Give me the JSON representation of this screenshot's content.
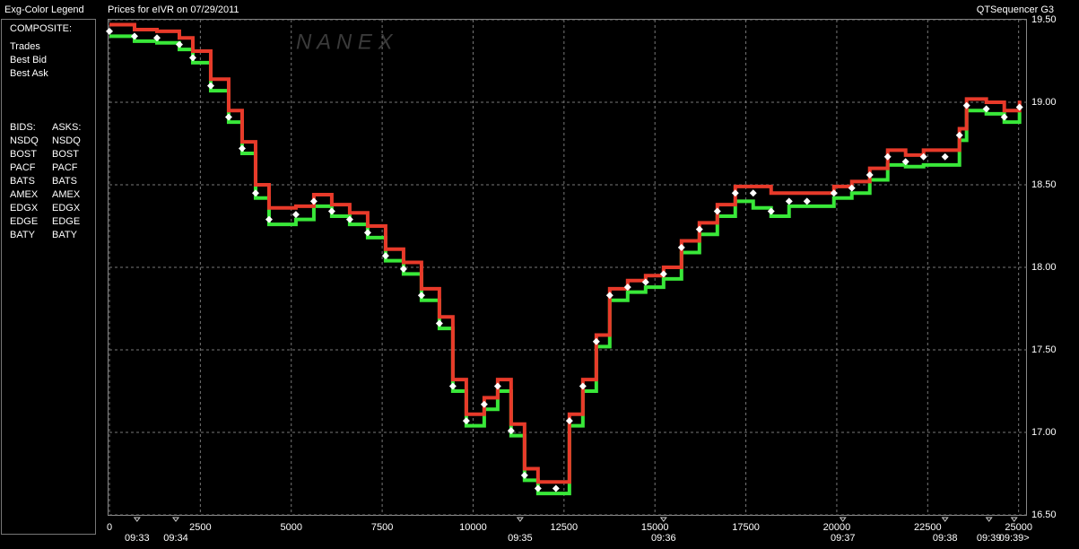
{
  "header": {
    "legend_title": "Exg-Color Legend",
    "app_name": "QTSequencer G3"
  },
  "legend": {
    "composite_title": "COMPOSITE:",
    "bids_title": "BIDS:",
    "asks_title": "ASKS:",
    "bids": [
      {
        "name": "NSDQ",
        "color": "#5080ff"
      },
      {
        "name": "BOST",
        "color": "#a8c888"
      },
      {
        "name": "PACF",
        "color": "#40e0f0"
      },
      {
        "name": "BATS",
        "color": "#88c8ff"
      },
      {
        "name": "AMEX",
        "color": "#40c040"
      },
      {
        "name": "EDGX",
        "color": "#3fa060"
      },
      {
        "name": "EDGE",
        "color": "#60b060"
      },
      {
        "name": "BATY",
        "color": "#4a68c8"
      }
    ],
    "asks": [
      {
        "name": "NSDQ",
        "color": "#ff9020"
      },
      {
        "name": "BOST",
        "color": "#e07050"
      },
      {
        "name": "PACF",
        "color": "#ffff60"
      },
      {
        "name": "BATS",
        "color": "#ffc060"
      },
      {
        "name": "AMEX",
        "color": "#e09040"
      },
      {
        "name": "EDGX",
        "color": "#c08060"
      },
      {
        "name": "EDGE",
        "color": "#e05030"
      },
      {
        "name": "BATY",
        "color": "#c84040"
      }
    ]
  },
  "chart_data": {
    "type": "line",
    "title": "Prices for  eIVR  on  07/29/2011",
    "watermark": "N A N E X",
    "x": [
      0,
      690,
      1307,
      1923,
      2293,
      2786,
      3279,
      3649,
      4019,
      4389,
      5128,
      5621,
      6114,
      6607,
      7101,
      7594,
      8087,
      8580,
      9073,
      9443,
      9813,
      10306,
      10676,
      11045,
      11415,
      11785,
      12278,
      12648,
      13018,
      13388,
      13757,
      14250,
      14744,
      15237,
      15730,
      16223,
      16716,
      17209,
      17702,
      18195,
      18688,
      19181,
      19921,
      20414,
      20907,
      21400,
      21893,
      22386,
      22978,
      23373,
      23570,
      24112,
      24606,
      25025
    ],
    "series": [
      {
        "name": "Trades",
        "color": "#ffffff",
        "marker": "diamond",
        "values": [
          19.43,
          19.4,
          19.39,
          19.35,
          19.27,
          19.1,
          18.91,
          18.72,
          18.45,
          18.29,
          18.32,
          18.4,
          18.34,
          18.29,
          18.21,
          18.07,
          17.99,
          17.83,
          17.66,
          17.28,
          17.07,
          17.17,
          17.28,
          17.01,
          16.74,
          16.66,
          16.66,
          17.07,
          17.28,
          17.55,
          17.83,
          17.88,
          17.91,
          17.96,
          18.12,
          18.23,
          18.34,
          18.45,
          18.45,
          18.34,
          18.4,
          18.4,
          18.45,
          18.48,
          18.56,
          18.67,
          18.64,
          18.67,
          18.67,
          18.8,
          18.98,
          18.96,
          18.91,
          18.97
        ]
      },
      {
        "name": "Best Bid",
        "color": "#39e839",
        "values": [
          19.4,
          19.37,
          19.36,
          19.32,
          19.24,
          19.07,
          18.88,
          18.69,
          18.42,
          18.26,
          18.29,
          18.37,
          18.31,
          18.26,
          18.18,
          18.04,
          17.96,
          17.8,
          17.63,
          17.25,
          17.04,
          17.14,
          17.25,
          16.98,
          16.71,
          16.63,
          16.63,
          17.04,
          17.25,
          17.52,
          17.8,
          17.85,
          17.88,
          17.93,
          18.09,
          18.2,
          18.31,
          18.4,
          18.36,
          18.31,
          18.37,
          18.37,
          18.42,
          18.45,
          18.53,
          18.62,
          18.61,
          18.62,
          18.62,
          18.77,
          18.95,
          18.93,
          18.88,
          18.94
        ]
      },
      {
        "name": "Best Ask",
        "color": "#e83a2a",
        "values": [
          19.47,
          19.44,
          19.43,
          19.39,
          19.31,
          19.14,
          18.95,
          18.76,
          18.5,
          18.36,
          18.37,
          18.44,
          18.38,
          18.33,
          18.25,
          18.11,
          18.03,
          17.87,
          17.7,
          17.32,
          17.11,
          17.21,
          17.32,
          17.05,
          16.78,
          16.7,
          16.7,
          17.11,
          17.32,
          17.59,
          17.87,
          17.92,
          17.95,
          18,
          18.16,
          18.27,
          18.38,
          18.49,
          18.49,
          18.45,
          18.45,
          18.45,
          18.49,
          18.52,
          18.6,
          18.71,
          18.68,
          18.71,
          18.71,
          18.84,
          19.02,
          19,
          18.95,
          19.01
        ]
      }
    ],
    "xlim": [
      0,
      25230
    ],
    "ylim": [
      16.5,
      19.5
    ],
    "xticks": [
      0,
      2500,
      5000,
      7500,
      10000,
      12500,
      15000,
      17500,
      20000,
      22500,
      25000
    ],
    "yticks": [
      {
        "value": 16.5,
        "label": "16.50"
      },
      {
        "value": 17,
        "label": "17.00"
      },
      {
        "value": 17.5,
        "label": "17.50"
      },
      {
        "value": 18,
        "label": "18.00"
      },
      {
        "value": 18.5,
        "label": "18.50"
      },
      {
        "value": 19,
        "label": "19.00"
      },
      {
        "value": 19.5,
        "label": "19.50"
      }
    ],
    "grid": true,
    "time_markers": [
      {
        "x": 760,
        "label": "09:33"
      },
      {
        "x": 1825,
        "label": "09:34"
      },
      {
        "x": 11292,
        "label": "09:35"
      },
      {
        "x": 15237,
        "label": "09:36"
      },
      {
        "x": 20168,
        "label": "09:37"
      },
      {
        "x": 22978,
        "label": "09:38"
      },
      {
        "x": 24186,
        "label": "09:39"
      },
      {
        "x": 24877,
        "label": "09:39>"
      }
    ]
  }
}
